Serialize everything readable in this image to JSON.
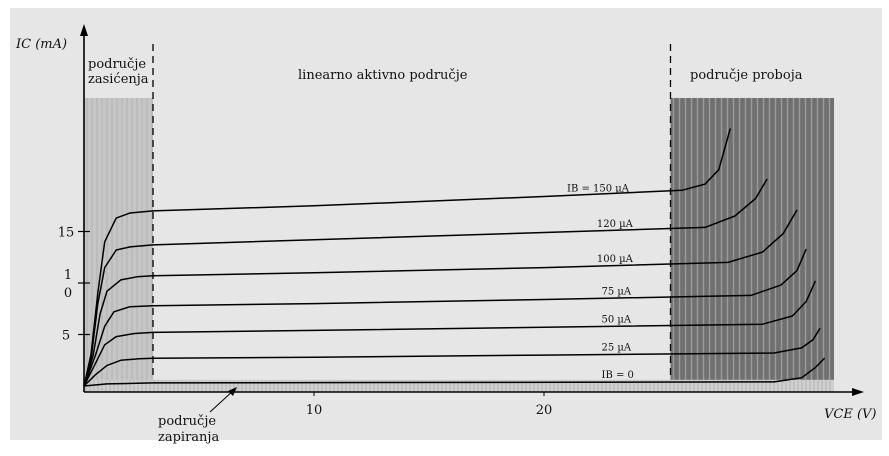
{
  "chart_data": {
    "type": "line",
    "xlabel": "VCE (V)",
    "ylabel": "IC (mA)",
    "xlim": [
      0,
      32
    ],
    "ylim": [
      0,
      25
    ],
    "x_ticks": [
      {
        "value": 10,
        "label": "10"
      },
      {
        "value": 20,
        "label": "20"
      }
    ],
    "y_ticks": [
      {
        "value": 15,
        "label": "15"
      },
      {
        "value": 10,
        "label": "1 0"
      },
      {
        "value": 5,
        "label": "5"
      }
    ],
    "grid": false,
    "colors": {
      "plot_background": "#e6e6e6",
      "curve": "#000000",
      "saturation_band": "#c6c6c6",
      "breakdown_band": "#707070"
    },
    "regions": [
      {
        "name": "saturation",
        "label_lines": [
          "područje",
          "zasićenja"
        ],
        "x_range": [
          0,
          3
        ]
      },
      {
        "name": "active",
        "label": "linearno aktivno područje",
        "x_range": [
          3,
          25.5
        ]
      },
      {
        "name": "breakdown",
        "label": "područje proboja",
        "x_range": [
          25.5,
          32
        ]
      },
      {
        "name": "cutoff",
        "label_lines": [
          "područje",
          "zapiranja"
        ],
        "y_range": [
          0,
          0.6
        ]
      }
    ],
    "series": [
      {
        "name": "IB = 150 µA",
        "label": "IB = 150 µA",
        "label_x": 21,
        "points": [
          [
            0,
            0
          ],
          [
            0.3,
            3
          ],
          [
            0.6,
            9
          ],
          [
            0.9,
            14
          ],
          [
            1.4,
            16.3
          ],
          [
            2,
            16.8
          ],
          [
            3,
            17
          ],
          [
            10,
            17.5
          ],
          [
            20,
            18.4
          ],
          [
            26,
            19
          ],
          [
            27,
            19.6
          ],
          [
            27.6,
            21
          ],
          [
            28.1,
            25
          ]
        ]
      },
      {
        "name": "120 µA",
        "label": "120 µA",
        "label_x": 22.3,
        "points": [
          [
            0,
            0
          ],
          [
            0.3,
            2.5
          ],
          [
            0.6,
            8
          ],
          [
            0.9,
            11.5
          ],
          [
            1.4,
            13.2
          ],
          [
            2,
            13.5
          ],
          [
            3,
            13.7
          ],
          [
            10,
            14.2
          ],
          [
            20,
            14.9
          ],
          [
            27,
            15.4
          ],
          [
            28.3,
            16.5
          ],
          [
            29.2,
            18.2
          ],
          [
            29.7,
            20.1
          ]
        ]
      },
      {
        "name": "100 µA",
        "label": "100 µA",
        "label_x": 22.3,
        "points": [
          [
            0,
            0
          ],
          [
            0.4,
            3
          ],
          [
            0.7,
            7
          ],
          [
            1,
            9.2
          ],
          [
            1.6,
            10.3
          ],
          [
            2.3,
            10.6
          ],
          [
            3,
            10.7
          ],
          [
            10,
            11
          ],
          [
            20,
            11.5
          ],
          [
            28,
            12
          ],
          [
            29.5,
            13
          ],
          [
            30.4,
            14.8
          ],
          [
            31,
            17.1
          ]
        ]
      },
      {
        "name": "75 µA",
        "label": "75 µA",
        "label_x": 22.5,
        "points": [
          [
            0,
            0
          ],
          [
            0.5,
            3
          ],
          [
            0.9,
            5.8
          ],
          [
            1.3,
            7.2
          ],
          [
            2,
            7.7
          ],
          [
            3,
            7.8
          ],
          [
            10,
            8
          ],
          [
            20,
            8.4
          ],
          [
            29,
            8.8
          ],
          [
            30.3,
            9.8
          ],
          [
            31,
            11.2
          ],
          [
            31.4,
            13.3
          ]
        ]
      },
      {
        "name": "50 µA",
        "label": "50 µA",
        "label_x": 22.5,
        "points": [
          [
            0,
            0
          ],
          [
            0.5,
            2.2
          ],
          [
            0.9,
            4
          ],
          [
            1.4,
            4.8
          ],
          [
            2.2,
            5.1
          ],
          [
            3,
            5.2
          ],
          [
            10,
            5.4
          ],
          [
            20,
            5.7
          ],
          [
            29.5,
            6
          ],
          [
            30.8,
            6.8
          ],
          [
            31.4,
            8.2
          ],
          [
            31.8,
            10.2
          ]
        ]
      },
      {
        "name": "25 µA",
        "label": "25 µA",
        "label_x": 22.5,
        "points": [
          [
            0,
            0
          ],
          [
            0.5,
            1.1
          ],
          [
            1,
            2
          ],
          [
            1.6,
            2.5
          ],
          [
            2.4,
            2.65
          ],
          [
            3,
            2.7
          ],
          [
            10,
            2.8
          ],
          [
            20,
            3
          ],
          [
            30,
            3.2
          ],
          [
            31.2,
            3.7
          ],
          [
            31.7,
            4.5
          ],
          [
            32,
            5.6
          ]
        ]
      },
      {
        "name": "IB = 0",
        "label": "IB = 0",
        "label_x": 22.5,
        "points": [
          [
            0,
            0
          ],
          [
            1,
            0.2
          ],
          [
            3,
            0.3
          ],
          [
            30,
            0.4
          ],
          [
            31.2,
            0.8
          ],
          [
            31.8,
            1.8
          ],
          [
            32.2,
            2.7
          ]
        ]
      }
    ]
  }
}
